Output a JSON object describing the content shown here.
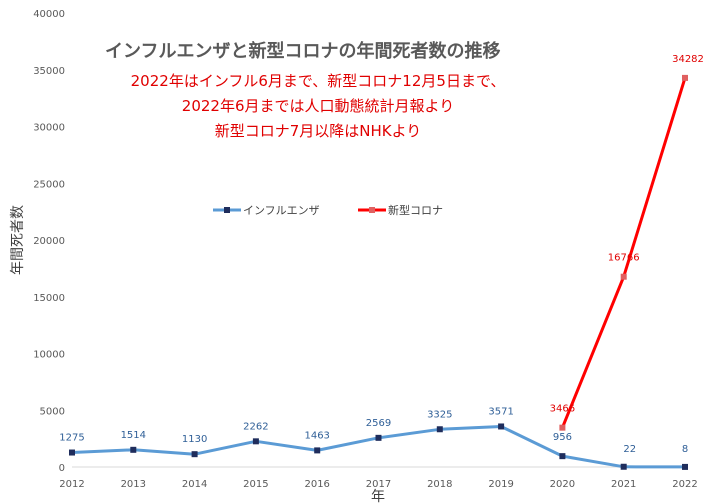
{
  "chart_data": {
    "type": "line",
    "title": "インフルエンザと新型コロナの年間死者数の推移",
    "subtitle_lines": [
      "2022年はインフル6月まで、新型コロナ12月5日まで、",
      "2022年6月までは人口動態統計月報より",
      "新型コロナ7月以降はNHKより"
    ],
    "xlabel": "年",
    "ylabel": "年間死者数",
    "ylim": [
      0,
      40000
    ],
    "yticks": [
      0,
      5000,
      10000,
      15000,
      20000,
      25000,
      30000,
      35000,
      40000
    ],
    "x": [
      2012,
      2013,
      2014,
      2015,
      2016,
      2017,
      2018,
      2019,
      2020,
      2021,
      2022
    ],
    "series": [
      {
        "name": "インフルエンザ",
        "color": "#5b9bd5",
        "marker_color": "#1f2d5c",
        "values": [
          1275,
          1514,
          1130,
          2262,
          1463,
          2569,
          3325,
          3571,
          956,
          22,
          8
        ]
      },
      {
        "name": "新型コロナ",
        "color": "#ff0000",
        "marker_color": "#e06060",
        "values": [
          null,
          null,
          null,
          null,
          null,
          null,
          null,
          null,
          3466,
          16766,
          34282
        ]
      }
    ],
    "legend_position": "center-left",
    "grid": false
  }
}
